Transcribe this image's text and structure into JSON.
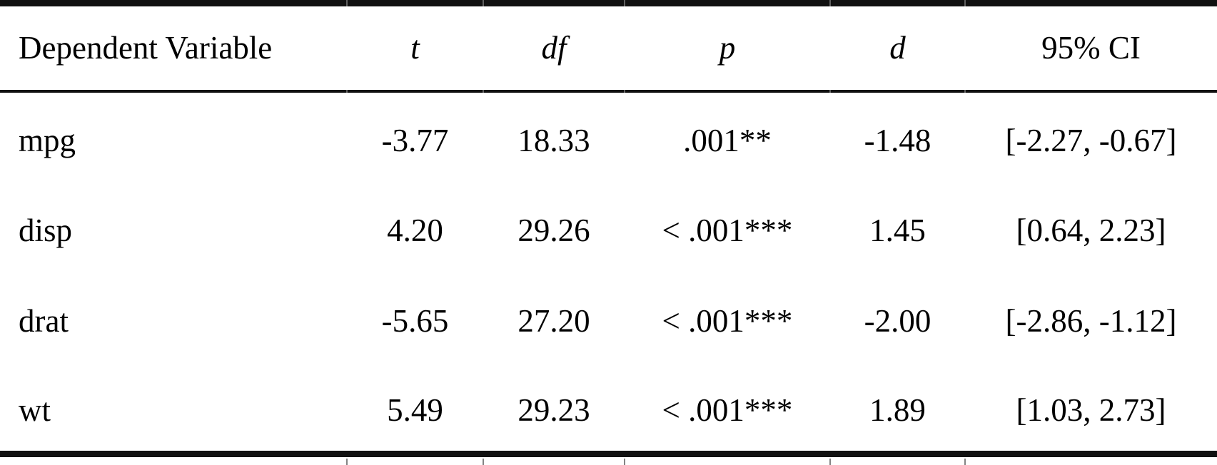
{
  "table": {
    "kind": "one-sample-t-test-results",
    "header": {
      "dependent_variable": "Dependent Variable",
      "t": "t",
      "df": "df",
      "p": "p",
      "d": "d",
      "ci": "95% CI"
    },
    "rows": [
      {
        "dv": "mpg",
        "t": "-3.77",
        "df": "18.33",
        "p": ".001**",
        "d": "-1.48",
        "ci": "[-2.27, -0.67]"
      },
      {
        "dv": "disp",
        "t": "4.20",
        "df": "29.26",
        "p": "< .001***",
        "d": "1.45",
        "ci": "[0.64, 2.23]"
      },
      {
        "dv": "drat",
        "t": "-5.65",
        "df": "27.20",
        "p": "< .001***",
        "d": "-2.00",
        "ci": "[-2.86, -1.12]"
      },
      {
        "dv": "wt",
        "t": "5.49",
        "df": "29.23",
        "p": "< .001***",
        "d": "1.89",
        "ci": "[1.03, 2.73]"
      }
    ],
    "colors": {
      "rule": "#111111",
      "boundary_tick": "#6e6e6e",
      "text": "#000000",
      "background": "#ffffff"
    }
  }
}
